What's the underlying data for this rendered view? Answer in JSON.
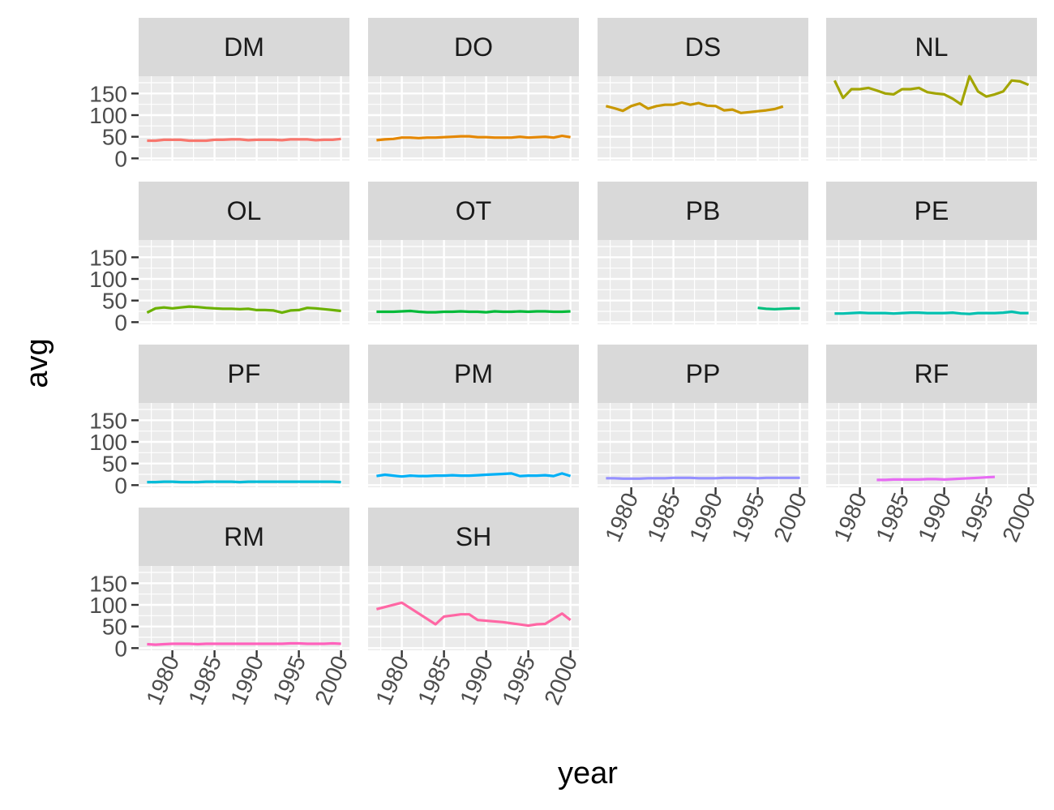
{
  "chart_data": {
    "type": "line",
    "layout": "facet_wrap",
    "xlabel": "year",
    "ylabel": "avg",
    "xlim": [
      1976,
      2001
    ],
    "ylim": [
      -5,
      190
    ],
    "x_ticks": [
      1980,
      1985,
      1990,
      1995,
      2000
    ],
    "y_ticks": [
      0,
      50,
      100,
      150
    ],
    "x_tick_labels": [
      "1980",
      "1985",
      "1990",
      "1995",
      "2000"
    ],
    "y_tick_labels": [
      "0",
      "50",
      "100",
      "150"
    ],
    "panels": [
      {
        "label": "DM",
        "color": "#F8766D",
        "x": [
          1977,
          1978,
          1979,
          1980,
          1981,
          1982,
          1983,
          1984,
          1985,
          1986,
          1987,
          1988,
          1989,
          1990,
          1991,
          1992,
          1993,
          1994,
          1995,
          1996,
          1997,
          1998,
          1999,
          2000
        ],
        "y": [
          41,
          41,
          43,
          43,
          43,
          41,
          41,
          41,
          43,
          43,
          44,
          44,
          42,
          43,
          43,
          43,
          42,
          44,
          44,
          44,
          42,
          43,
          43,
          45
        ]
      },
      {
        "label": "DO",
        "color": "#E58700",
        "x": [
          1977,
          1978,
          1979,
          1980,
          1981,
          1982,
          1983,
          1984,
          1985,
          1986,
          1987,
          1988,
          1989,
          1990,
          1991,
          1992,
          1993,
          1994,
          1995,
          1996,
          1997,
          1998,
          1999,
          2000
        ],
        "y": [
          42,
          44,
          45,
          48,
          48,
          47,
          48,
          48,
          49,
          50,
          51,
          51,
          49,
          49,
          48,
          48,
          48,
          50,
          48,
          49,
          50,
          48,
          52,
          49
        ]
      },
      {
        "label": "DS",
        "color": "#C99800",
        "x": [
          1977,
          1978,
          1979,
          1980,
          1981,
          1982,
          1983,
          1984,
          1985,
          1986,
          1987,
          1988,
          1989,
          1990,
          1991,
          1992,
          1993,
          1994,
          1995,
          1996,
          1997,
          1998
        ],
        "y": [
          121,
          116,
          110,
          121,
          127,
          115,
          121,
          124,
          124,
          129,
          124,
          128,
          122,
          121,
          111,
          113,
          105,
          107,
          109,
          111,
          114,
          120
        ]
      },
      {
        "label": "NL",
        "color": "#A3A500",
        "x": [
          1977,
          1978,
          1979,
          1980,
          1981,
          1982,
          1983,
          1984,
          1985,
          1986,
          1987,
          1988,
          1989,
          1990,
          1991,
          1992,
          1993,
          1994,
          1995,
          1996,
          1997,
          1998,
          1999,
          2000
        ],
        "y": [
          180,
          140,
          160,
          160,
          163,
          157,
          150,
          148,
          160,
          160,
          163,
          153,
          150,
          148,
          138,
          125,
          190,
          155,
          143,
          148,
          155,
          180,
          178,
          170
        ]
      },
      {
        "label": "OL",
        "color": "#6BB100",
        "x": [
          1977,
          1978,
          1979,
          1980,
          1981,
          1982,
          1983,
          1984,
          1985,
          1986,
          1987,
          1988,
          1989,
          1990,
          1991,
          1992,
          1993,
          1994,
          1995,
          1996,
          1997,
          1998,
          1999,
          2000
        ],
        "y": [
          22,
          32,
          34,
          32,
          34,
          36,
          35,
          33,
          32,
          31,
          31,
          30,
          31,
          28,
          28,
          27,
          22,
          27,
          28,
          33,
          32,
          30,
          28,
          26
        ]
      },
      {
        "label": "OT",
        "color": "#00BA38",
        "x": [
          1977,
          1978,
          1979,
          1980,
          1981,
          1982,
          1983,
          1984,
          1985,
          1986,
          1987,
          1988,
          1989,
          1990,
          1991,
          1992,
          1993,
          1994,
          1995,
          1996,
          1997,
          1998,
          1999,
          2000
        ],
        "y": [
          24,
          24,
          24,
          25,
          26,
          24,
          23,
          23,
          24,
          24,
          25,
          24,
          24,
          23,
          25,
          24,
          24,
          25,
          24,
          25,
          25,
          24,
          24,
          25
        ]
      },
      {
        "label": "PB",
        "color": "#00BF7D",
        "x": [
          1995,
          1996,
          1997,
          1998,
          1999,
          2000
        ],
        "y": [
          33,
          31,
          30,
          31,
          32,
          32
        ]
      },
      {
        "label": "PE",
        "color": "#00C0AF",
        "x": [
          1977,
          1978,
          1979,
          1980,
          1981,
          1982,
          1983,
          1984,
          1985,
          1986,
          1987,
          1988,
          1989,
          1990,
          1991,
          1992,
          1993,
          1994,
          1995,
          1996,
          1997,
          1998,
          1999,
          2000
        ],
        "y": [
          20,
          20,
          21,
          22,
          21,
          21,
          21,
          20,
          21,
          22,
          22,
          21,
          21,
          21,
          22,
          20,
          19,
          21,
          21,
          21,
          22,
          24,
          21,
          21
        ]
      },
      {
        "label": "PF",
        "color": "#00BCD8",
        "x": [
          1977,
          1978,
          1979,
          1980,
          1981,
          1982,
          1983,
          1984,
          1985,
          1986,
          1987,
          1988,
          1989,
          1990,
          1991,
          1992,
          1993,
          1994,
          1995,
          1996,
          1997,
          1998,
          1999,
          2000
        ],
        "y": [
          7,
          7,
          8,
          8,
          7,
          7,
          7,
          8,
          8,
          8,
          8,
          7,
          8,
          8,
          8,
          8,
          8,
          8,
          8,
          8,
          8,
          8,
          8,
          7
        ]
      },
      {
        "label": "PM",
        "color": "#00B0F6",
        "x": [
          1977,
          1978,
          1979,
          1980,
          1981,
          1982,
          1983,
          1984,
          1985,
          1986,
          1987,
          1988,
          1989,
          1990,
          1991,
          1992,
          1993,
          1994,
          1995,
          1996,
          1997,
          1998,
          1999,
          2000
        ],
        "y": [
          21,
          24,
          22,
          20,
          22,
          21,
          21,
          22,
          22,
          23,
          22,
          22,
          23,
          24,
          25,
          26,
          27,
          21,
          22,
          22,
          23,
          21,
          27,
          21
        ]
      },
      {
        "label": "PP",
        "color": "#9590FF",
        "x": [
          1977,
          1978,
          1979,
          1980,
          1981,
          1982,
          1983,
          1984,
          1985,
          1986,
          1987,
          1988,
          1989,
          1990,
          1991,
          1992,
          1993,
          1994,
          1995,
          1996,
          1997,
          1998,
          1999,
          2000
        ],
        "y": [
          16,
          16,
          15,
          15,
          15,
          16,
          16,
          16,
          17,
          17,
          17,
          16,
          16,
          16,
          17,
          17,
          17,
          17,
          16,
          17,
          17,
          17,
          17,
          17
        ]
      },
      {
        "label": "RF",
        "color": "#E76BF3",
        "x": [
          1982,
          1983,
          1984,
          1985,
          1986,
          1987,
          1988,
          1989,
          1990,
          1991,
          1992,
          1993,
          1994,
          1995,
          1996
        ],
        "y": [
          12,
          12,
          13,
          13,
          13,
          13,
          14,
          14,
          13,
          14,
          15,
          16,
          17,
          18,
          19
        ]
      },
      {
        "label": "RM",
        "color": "#FF62BC",
        "x": [
          1977,
          1978,
          1979,
          1980,
          1981,
          1982,
          1983,
          1984,
          1985,
          1986,
          1987,
          1988,
          1989,
          1990,
          1991,
          1992,
          1993,
          1994,
          1995,
          1996,
          1997,
          1998,
          1999,
          2000
        ],
        "y": [
          9,
          8,
          9,
          10,
          10,
          10,
          9,
          10,
          10,
          10,
          10,
          10,
          10,
          10,
          10,
          10,
          10,
          11,
          11,
          10,
          10,
          10,
          11,
          10
        ]
      },
      {
        "label": "SH",
        "color": "#FF67A4",
        "x": [
          1977,
          1980,
          1984,
          1985,
          1987,
          1988,
          1989,
          1992,
          1995,
          1996,
          1997,
          1999,
          2000
        ],
        "y": [
          90,
          105,
          55,
          73,
          78,
          78,
          65,
          60,
          52,
          55,
          56,
          80,
          65
        ]
      }
    ]
  }
}
